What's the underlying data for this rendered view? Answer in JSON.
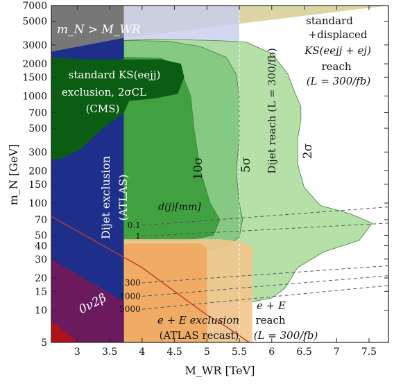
{
  "chart_data": {
    "type": "area",
    "x_axis": {
      "label": "M_WR [TeV]",
      "range": [
        2.6,
        7.8
      ],
      "ticks": [
        3,
        3.5,
        4,
        4.5,
        5,
        5.5,
        6,
        6.5,
        7,
        7.5
      ],
      "tick_labels": [
        "3",
        "3.5",
        "4",
        "4.5",
        "5",
        "5.5",
        "6",
        "6.5",
        "7",
        "7.5"
      ]
    },
    "y_axis": {
      "label": "m_N [GeV]",
      "scale": "log",
      "range": [
        5,
        7000
      ],
      "ticks": [
        5,
        10,
        15,
        20,
        30,
        40,
        50,
        70,
        100,
        150,
        200,
        300,
        500,
        700,
        1000,
        1500,
        2000,
        3000,
        5000,
        7000
      ],
      "tick_labels": [
        "5",
        "10",
        "15",
        "20",
        "30",
        "40",
        "50",
        "70",
        "100",
        "150",
        "200",
        "300",
        "500",
        "700",
        "1000",
        "1500",
        "2000",
        "3000",
        "5000",
        "7000"
      ]
    },
    "regions": [
      {
        "key": "mn_gt_mwr",
        "label": "m_N > M_WR",
        "color": "#777777",
        "points": [
          [
            2.6,
            7000
          ],
          [
            3.72,
            7000
          ],
          [
            3.72,
            3500
          ],
          [
            2.6,
            2600
          ]
        ]
      },
      {
        "key": "dijet_exclusion",
        "label": [
          "Dijet exclusion",
          "(ATLAS)"
        ],
        "color": "#1e2f8b",
        "points": [
          [
            2.6,
            2600
          ],
          [
            3.72,
            3500
          ],
          [
            3.72,
            5
          ],
          [
            2.6,
            5
          ]
        ]
      },
      {
        "key": "triangle_top",
        "label": "",
        "color": "#d8d29a",
        "points": [
          [
            3.72,
            7000
          ],
          [
            7.8,
            7000
          ],
          [
            3.72,
            3500
          ]
        ]
      },
      {
        "key": "dijet_reach",
        "label": "Dijet reach (L = 300/fb)",
        "color": "#c8cdee",
        "points": [
          [
            3.72,
            7000
          ],
          [
            5.5,
            7000
          ],
          [
            5.5,
            5
          ],
          [
            3.72,
            5
          ]
        ]
      },
      {
        "key": "sigma2",
        "label": "2σ",
        "color": "#a8dc9a",
        "points": [
          [
            3.72,
            3300
          ],
          [
            4.1,
            3400
          ],
          [
            5.1,
            3300
          ],
          [
            5.6,
            3200
          ],
          [
            6.0,
            2500
          ],
          [
            6.25,
            1600
          ],
          [
            6.35,
            1100
          ],
          [
            6.45,
            800
          ],
          [
            6.45,
            600
          ],
          [
            6.4,
            400
          ],
          [
            6.4,
            230
          ],
          [
            6.5,
            140
          ],
          [
            6.75,
            95
          ],
          [
            7.2,
            80
          ],
          [
            7.55,
            65
          ],
          [
            7.35,
            45
          ],
          [
            6.8,
            35
          ],
          [
            6.4,
            25
          ],
          [
            6.2,
            16
          ],
          [
            6.0,
            13
          ],
          [
            5.7,
            12
          ],
          [
            5.2,
            12
          ],
          [
            3.72,
            12
          ]
        ]
      },
      {
        "key": "sigma5",
        "label": "5σ",
        "color": "#7fc67b",
        "points": [
          [
            3.72,
            3300
          ],
          [
            4.4,
            3250
          ],
          [
            4.9,
            2900
          ],
          [
            5.3,
            2300
          ],
          [
            5.45,
            1600
          ],
          [
            5.5,
            1000
          ],
          [
            5.5,
            400
          ],
          [
            5.45,
            200
          ],
          [
            5.5,
            100
          ],
          [
            5.55,
            70
          ],
          [
            5.5,
            48
          ],
          [
            5.3,
            40
          ],
          [
            5.0,
            37
          ],
          [
            4.5,
            37
          ],
          [
            3.72,
            37
          ]
        ]
      },
      {
        "key": "sigma10",
        "label": "10σ",
        "color": "#3a9c3a",
        "points": [
          [
            3.72,
            2300
          ],
          [
            4.3,
            2250
          ],
          [
            4.6,
            1700
          ],
          [
            4.75,
            1000
          ],
          [
            4.8,
            500
          ],
          [
            4.9,
            200
          ],
          [
            5.05,
            100
          ],
          [
            5.2,
            70
          ],
          [
            5.1,
            50
          ],
          [
            4.7,
            45
          ],
          [
            4.2,
            45
          ],
          [
            3.72,
            45
          ]
        ]
      },
      {
        "key": "ks_cms",
        "label": [
          "standard KS(eejj)",
          "exclusion, 2σCL",
          "(CMS)"
        ],
        "color": "#0b5d14",
        "points": [
          [
            2.6,
            2300
          ],
          [
            3.1,
            2200
          ],
          [
            3.6,
            2200
          ],
          [
            4.3,
            2200
          ],
          [
            4.6,
            2000
          ],
          [
            4.65,
            1500
          ],
          [
            4.55,
            1050
          ],
          [
            4.2,
            950
          ],
          [
            3.8,
            900
          ],
          [
            3.72,
            700
          ],
          [
            3.4,
            500
          ],
          [
            3.05,
            320
          ],
          [
            2.75,
            260
          ],
          [
            2.6,
            255
          ]
        ]
      },
      {
        "key": "ee_reach",
        "label": [
          "e + E",
          "reach",
          "(L = 300/fb)"
        ],
        "color": "#f3c68d",
        "points": [
          [
            3.72,
            46
          ],
          [
            5.2,
            46
          ],
          [
            5.6,
            43
          ],
          [
            5.7,
            38
          ],
          [
            5.7,
            5
          ],
          [
            3.72,
            5
          ]
        ]
      },
      {
        "key": "ee_exclusion",
        "label": [
          "e + E exclusion",
          "(ATLAS recast)"
        ],
        "color": "#f0a861",
        "points": [
          [
            3.72,
            42
          ],
          [
            4.9,
            42
          ],
          [
            5.0,
            38
          ],
          [
            5.0,
            5
          ],
          [
            3.72,
            5
          ]
        ]
      },
      {
        "key": "dbb_band",
        "label": "0ν2β",
        "color": "#6b1a5e",
        "points": [
          [
            2.6,
            30
          ],
          [
            3.72,
            12
          ],
          [
            3.72,
            5
          ],
          [
            2.6,
            5
          ]
        ]
      },
      {
        "key": "red_corner",
        "label": "",
        "color": "#b0121c",
        "points": [
          [
            2.6,
            8
          ],
          [
            3.0,
            5
          ],
          [
            2.6,
            5
          ]
        ]
      }
    ],
    "lines": [
      {
        "key": "red_line",
        "color": "#c33a2e",
        "points": [
          [
            2.6,
            75
          ],
          [
            4.0,
            25
          ],
          [
            5.0,
            9
          ],
          [
            5.3,
            7
          ],
          [
            5.65,
            5
          ]
        ]
      },
      {
        "key": "d01",
        "label": "0.1",
        "points": [
          [
            4.0,
            62
          ],
          [
            7.8,
            92
          ]
        ]
      },
      {
        "key": "d1",
        "label": "1",
        "points": [
          [
            4.0,
            49
          ],
          [
            7.8,
            65
          ]
        ]
      },
      {
        "key": "d300",
        "label": "300",
        "points": [
          [
            4.0,
            18
          ],
          [
            7.8,
            26
          ]
        ]
      },
      {
        "key": "d1000",
        "label": "1000",
        "points": [
          [
            4.0,
            13.5
          ],
          [
            7.8,
            21
          ]
        ]
      },
      {
        "key": "d5000",
        "label": "5000",
        "points": [
          [
            4.0,
            10.2
          ],
          [
            7.8,
            17
          ]
        ]
      },
      {
        "key": "dijet_boundary",
        "points": [
          [
            5.5,
            7000
          ],
          [
            5.5,
            5
          ]
        ]
      }
    ],
    "annotations": {
      "mn_gt_mwr": "m_N > M_WR",
      "ks_cms": [
        "standard KS(eejj)",
        "exclusion, 2σCL",
        "(CMS)"
      ],
      "dijet_exclusion": [
        "Dijet exclusion",
        "(ATLAS)"
      ],
      "dijet_reach": "Dijet reach (L = 300/fb)",
      "sigma10": "10σ",
      "sigma5": "5σ",
      "sigma2": "2σ",
      "displaced": [
        "standard",
        "+displaced",
        "KS(eejj + ej)",
        "reach",
        "(L = 300/fb)"
      ],
      "dj_header": "d(j)[mm]",
      "ee_exclusion": [
        "e + E exclusion",
        "(ATLAS recast)"
      ],
      "ee_reach": [
        "e + E",
        "reach",
        "(L = 300/fb)"
      ],
      "dbb": "0ν2β"
    },
    "grid": false
  }
}
